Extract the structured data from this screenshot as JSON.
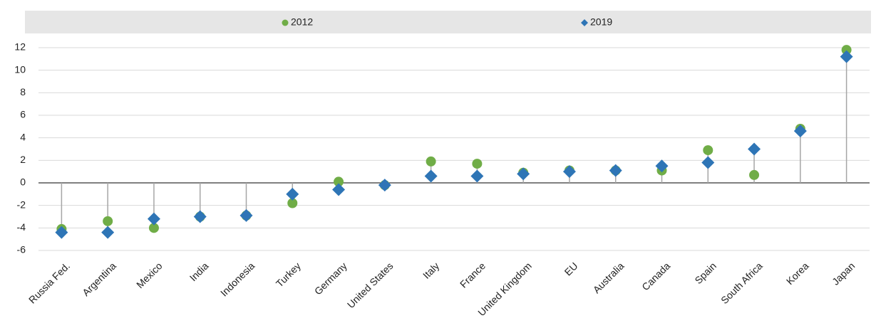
{
  "chart_data": {
    "type": "dot",
    "categories": [
      "Russia Fed.",
      "Argentina",
      "Mexico",
      "India",
      "Indonesia",
      "Turkey",
      "Germany",
      "United States",
      "Italy",
      "France",
      "United Kingdom",
      "EU",
      "Australia",
      "Canada",
      "Spain",
      "South Africa",
      "Korea",
      "Japan"
    ],
    "series": [
      {
        "name": "2012",
        "color": "#70ad47",
        "marker": "circle",
        "values": [
          -4.1,
          -3.4,
          -4.0,
          -3.0,
          -2.9,
          -1.8,
          0.1,
          -0.2,
          1.9,
          1.7,
          0.9,
          1.1,
          1.1,
          1.1,
          2.9,
          0.7,
          4.8,
          11.8
        ]
      },
      {
        "name": "2019",
        "color": "#2e75b6",
        "marker": "diamond",
        "values": [
          -4.4,
          -4.4,
          -3.2,
          -3.0,
          -2.9,
          -1.0,
          -0.6,
          -0.2,
          0.6,
          0.6,
          0.8,
          1.0,
          1.1,
          1.5,
          1.8,
          3.0,
          4.6,
          11.2
        ]
      }
    ],
    "ylim": [
      -6,
      12
    ],
    "yticks": [
      -6,
      -4,
      -2,
      0,
      2,
      4,
      6,
      8,
      10,
      12
    ],
    "grid": true,
    "legend": "top"
  }
}
